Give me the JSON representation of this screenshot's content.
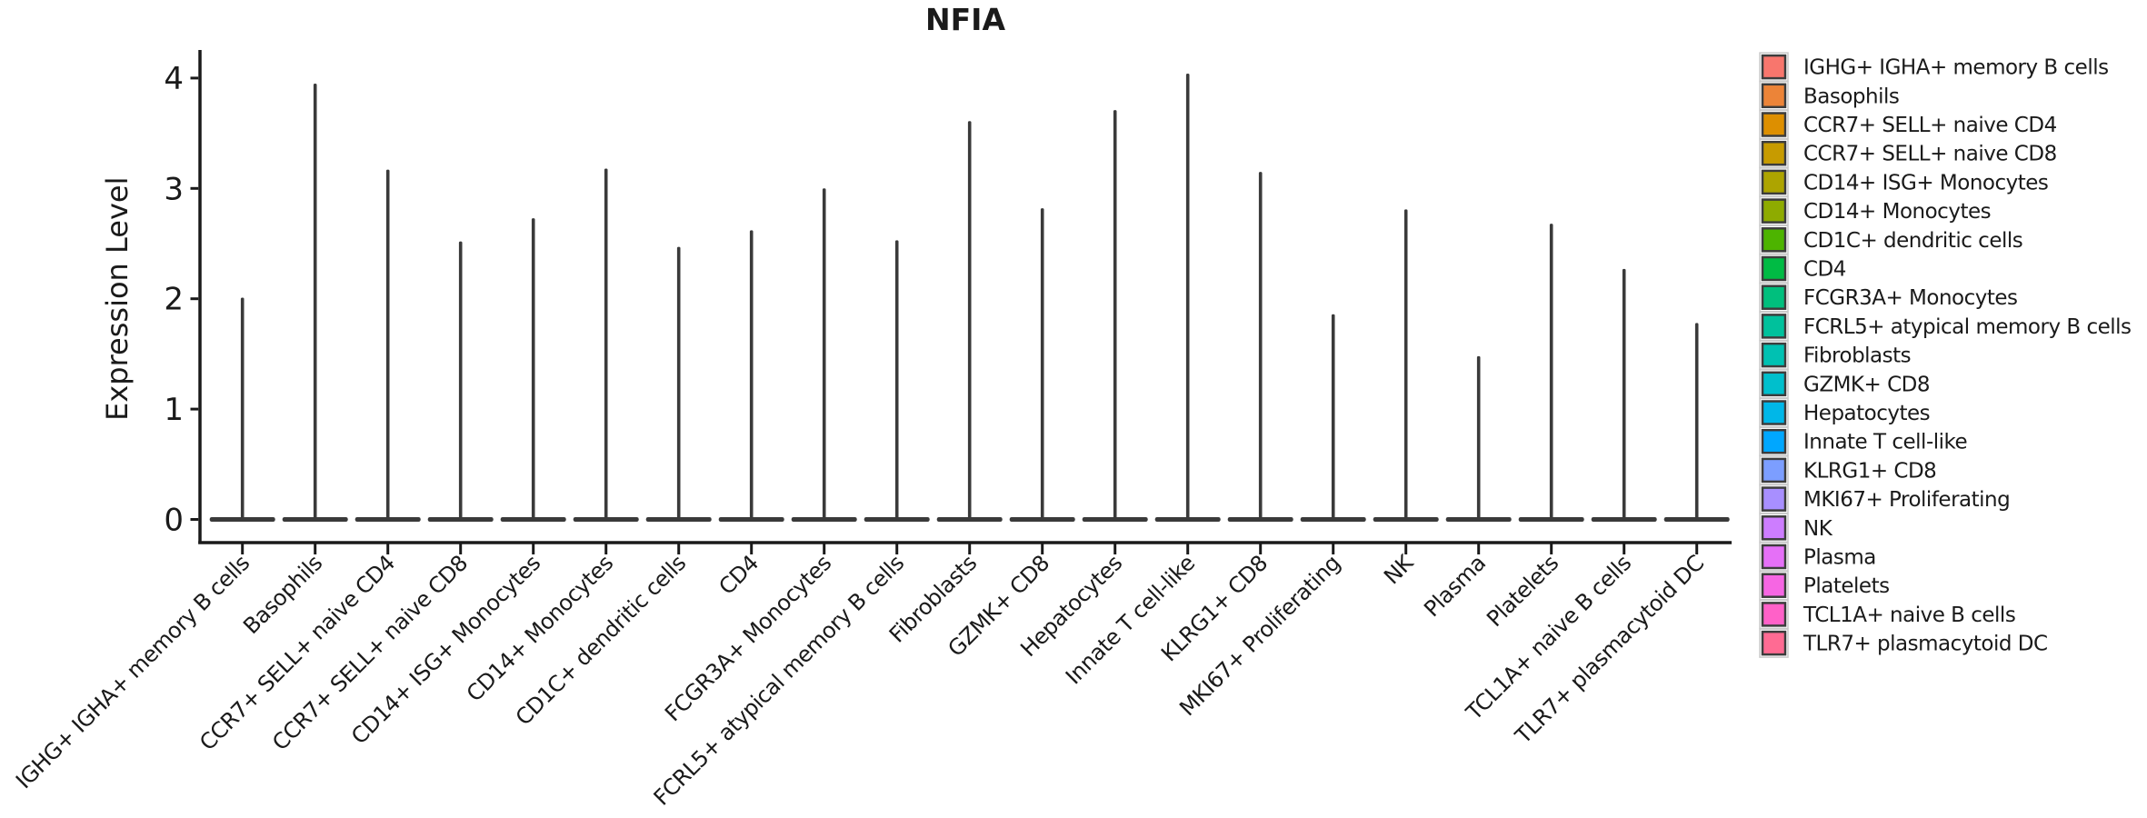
{
  "title": "NFIA",
  "chart_data": {
    "type": "violin",
    "title": "NFIA",
    "xlabel": "",
    "ylabel": "Expression Level",
    "yticks": [
      0,
      1,
      2,
      3,
      4
    ],
    "ylim": [
      -0.2,
      4.25
    ],
    "grid": false,
    "legend_position": "right",
    "categories": [
      "IGHG+ IGHA+ memory B cells",
      "Basophils",
      "CCR7+ SELL+ naive CD4",
      "CCR7+ SELL+ naive CD8",
      "CD14+ ISG+ Monocytes",
      "CD14+ Monocytes",
      "CD1C+ dendritic cells",
      "CD4",
      "FCGR3A+ Monocytes",
      "FCRL5+ atypical memory B cells",
      "Fibroblasts",
      "GZMK+ CD8",
      "Hepatocytes",
      "Innate T cell-like",
      "KLRG1+ CD8",
      "MKI67+ Proliferating",
      "NK",
      "Plasma",
      "Platelets",
      "TCL1A+ naive B cells",
      "TLR7+ plasmacytoid DC"
    ],
    "legend_labels": [
      " IGHG+ IGHA+ memory B cells",
      "Basophils",
      "CCR7+ SELL+ naive CD4",
      "CCR7+ SELL+ naive CD8",
      "CD14+ ISG+ Monocytes",
      "CD14+ Monocytes",
      "CD1C+ dendritic cells",
      "CD4",
      "FCGR3A+ Monocytes",
      "FCRL5+ atypical memory B cells",
      "Fibroblasts",
      "GZMK+ CD8",
      "Hepatocytes",
      "Innate T cell-like",
      "KLRG1+ CD8",
      "MKI67+ Proliferating",
      "NK",
      "Plasma",
      "Platelets",
      "TCL1A+ naive B cells",
      "TLR7+ plasmacytoid DC"
    ],
    "values": [
      2.01,
      3.95,
      3.17,
      2.52,
      2.73,
      3.18,
      2.47,
      2.62,
      3.0,
      2.53,
      3.61,
      2.82,
      3.71,
      4.04,
      3.15,
      1.86,
      2.81,
      1.48,
      2.68,
      2.27,
      1.78
    ],
    "series_note": "values are the maximum Expression Level reached by each violin spike; violins are near-zero-width with mass concentrated at 0",
    "colors": [
      "#F8766D",
      "#EC8438",
      "#DD8F00",
      "#C79B00",
      "#ADA400",
      "#8EAB00",
      "#4DB400",
      "#00BB44",
      "#00BF7D",
      "#00C19C",
      "#00C1B2",
      "#00BFCC",
      "#00B7E8",
      "#00A7FF",
      "#7C9EFF",
      "#A88FFF",
      "#CD7DFF",
      "#E570F7",
      "#F666E3",
      "#FF61C8",
      "#FF6B93"
    ],
    "violin_outline_color": "#3A3A3A",
    "axis_color": "#1A1A1A"
  }
}
